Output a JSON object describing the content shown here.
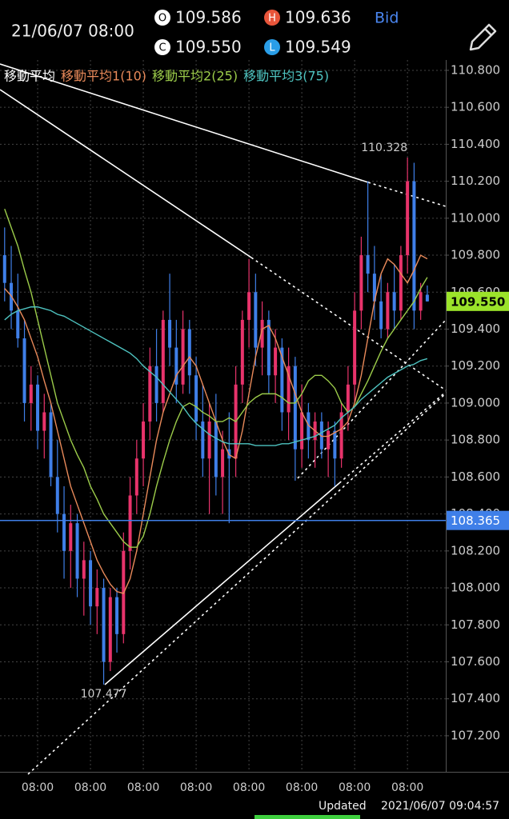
{
  "header": {
    "datetime": "21/06/07 08:00",
    "open": {
      "tag": "O",
      "value": "109.586"
    },
    "high": {
      "tag": "H",
      "value": "109.636"
    },
    "close": {
      "tag": "C",
      "value": "109.550"
    },
    "low": {
      "tag": "L",
      "value": "109.549"
    },
    "price_type": "Bid"
  },
  "footer": {
    "label": "Updated",
    "timestamp": "2021/06/07 09:04:57"
  },
  "chart_data": {
    "type": "candlestick",
    "legend_title": "移動平均",
    "up_color": "#e8336b",
    "down_color": "#3f7fe8",
    "xlim": [
      -0.7,
      66.8
    ],
    "xticks": [
      {
        "value": 5,
        "label": "08:00"
      },
      {
        "value": 13,
        "label": "08:00"
      },
      {
        "value": 21,
        "label": "08:00"
      },
      {
        "value": 29,
        "label": "08:00"
      },
      {
        "value": 37,
        "label": "08:00"
      },
      {
        "value": 45,
        "label": "08:00"
      },
      {
        "value": 53,
        "label": "08:00"
      },
      {
        "value": 61,
        "label": "08:00"
      }
    ],
    "ylim": [
      107.005,
      110.856
    ],
    "yticks": [
      {
        "value": 110.8,
        "label": "110.800"
      },
      {
        "value": 110.6,
        "label": "110.600"
      },
      {
        "value": 110.4,
        "label": "110.400"
      },
      {
        "value": 110.2,
        "label": "110.200"
      },
      {
        "value": 110,
        "label": "110.000"
      },
      {
        "value": 109.8,
        "label": "109.800"
      },
      {
        "value": 109.6,
        "label": "109.600"
      },
      {
        "value": 109.4,
        "label": "109.400"
      },
      {
        "value": 109.2,
        "label": "109.200"
      },
      {
        "value": 109,
        "label": "109.000"
      },
      {
        "value": 108.8,
        "label": "108.800"
      },
      {
        "value": 108.6,
        "label": "108.600"
      },
      {
        "value": 108.4,
        "label": "108.400"
      },
      {
        "value": 108.2,
        "label": "108.200"
      },
      {
        "value": 108,
        "label": "108.000"
      },
      {
        "value": 107.8,
        "label": "107.800"
      },
      {
        "value": 107.6,
        "label": "107.600"
      },
      {
        "value": 107.4,
        "label": "107.400"
      },
      {
        "value": 107.2,
        "label": "107.200"
      }
    ],
    "grid": true,
    "ohlc": [
      [
        109.8,
        109.95,
        109.55,
        109.65
      ],
      [
        109.65,
        109.85,
        109.4,
        109.5
      ],
      [
        109.5,
        109.7,
        109.3,
        109.35
      ],
      [
        109.35,
        109.45,
        108.9,
        109.0
      ],
      [
        109.0,
        109.2,
        108.85,
        109.1
      ],
      [
        109.1,
        109.15,
        108.75,
        108.85
      ],
      [
        108.85,
        109.05,
        108.7,
        108.95
      ],
      [
        108.95,
        109.0,
        108.55,
        108.6
      ],
      [
        108.6,
        108.8,
        108.3,
        108.4
      ],
      [
        108.4,
        108.55,
        108.05,
        108.2
      ],
      [
        108.2,
        108.45,
        108.0,
        108.35
      ],
      [
        108.35,
        108.4,
        107.95,
        108.05
      ],
      [
        108.05,
        108.25,
        107.85,
        108.15
      ],
      [
        108.15,
        108.2,
        107.8,
        107.9
      ],
      [
        107.9,
        108.1,
        107.75,
        108.0
      ],
      [
        108.0,
        108.05,
        107.477,
        107.6
      ],
      [
        107.6,
        108.0,
        107.55,
        107.95
      ],
      [
        107.95,
        108.0,
        107.65,
        107.75
      ],
      [
        107.75,
        108.3,
        107.7,
        108.2
      ],
      [
        108.2,
        108.6,
        108.1,
        108.5
      ],
      [
        108.5,
        108.8,
        108.4,
        108.7
      ],
      [
        108.7,
        109.0,
        108.55,
        108.9
      ],
      [
        108.9,
        109.3,
        108.8,
        109.2
      ],
      [
        109.2,
        109.4,
        108.9,
        109.0
      ],
      [
        109.0,
        109.5,
        108.95,
        109.45
      ],
      [
        109.45,
        109.7,
        109.2,
        109.3
      ],
      [
        109.3,
        109.45,
        109.0,
        109.1
      ],
      [
        109.1,
        109.5,
        109.05,
        109.4
      ],
      [
        109.4,
        109.45,
        109.05,
        109.15
      ],
      [
        109.15,
        109.25,
        108.8,
        108.9
      ],
      [
        108.9,
        109.1,
        108.6,
        108.7
      ],
      [
        108.7,
        109.0,
        108.4,
        108.9
      ],
      [
        108.9,
        109.05,
        108.5,
        108.6
      ],
      [
        108.6,
        108.85,
        108.4,
        108.75
      ],
      [
        108.75,
        108.95,
        108.35,
        108.7
      ],
      [
        108.7,
        109.2,
        108.6,
        109.1
      ],
      [
        109.1,
        109.5,
        109.0,
        109.45
      ],
      [
        109.45,
        109.78,
        109.3,
        109.6
      ],
      [
        109.6,
        109.7,
        109.2,
        109.3
      ],
      [
        109.3,
        109.55,
        109.15,
        109.45
      ],
      [
        109.45,
        109.5,
        109.05,
        109.15
      ],
      [
        109.15,
        109.4,
        109.0,
        109.3
      ],
      [
        109.3,
        109.35,
        108.85,
        108.95
      ],
      [
        108.95,
        109.3,
        108.8,
        109.2
      ],
      [
        109.2,
        109.25,
        108.58,
        108.75
      ],
      [
        108.75,
        109.1,
        108.65,
        108.95
      ],
      [
        108.95,
        109.0,
        108.7,
        108.8
      ],
      [
        108.8,
        108.95,
        108.65,
        108.9
      ],
      [
        108.9,
        108.95,
        108.7,
        108.75
      ],
      [
        108.75,
        108.9,
        108.6,
        108.85
      ],
      [
        108.85,
        108.9,
        108.55,
        108.7
      ],
      [
        108.7,
        109.0,
        108.65,
        108.95
      ],
      [
        108.95,
        109.2,
        108.85,
        109.1
      ],
      [
        109.1,
        109.6,
        109.0,
        109.5
      ],
      [
        109.5,
        109.9,
        109.4,
        109.8
      ],
      [
        109.8,
        110.2,
        109.6,
        109.7
      ],
      [
        109.7,
        109.85,
        109.45,
        109.55
      ],
      [
        109.55,
        109.7,
        109.35,
        109.4
      ],
      [
        109.4,
        109.65,
        109.35,
        109.6
      ],
      [
        109.6,
        109.75,
        109.4,
        109.5
      ],
      [
        109.5,
        109.85,
        109.45,
        109.8
      ],
      [
        109.8,
        110.328,
        109.7,
        110.2
      ],
      [
        110.2,
        110.3,
        109.4,
        109.5
      ],
      [
        109.5,
        109.65,
        109.45,
        109.6
      ],
      [
        109.586,
        109.636,
        109.549,
        109.55
      ]
    ],
    "high_annotation_index": 61,
    "low_annotation_index": 15,
    "series": [
      {
        "name": "移動平均1(10)",
        "color": "#e98a5a",
        "values": [
          109.62,
          109.58,
          109.52,
          109.45,
          109.35,
          109.25,
          109.12,
          109.0,
          108.85,
          108.7,
          108.55,
          108.45,
          108.35,
          108.25,
          108.15,
          108.08,
          108.02,
          107.98,
          107.97,
          108.05,
          108.2,
          108.4,
          108.6,
          108.8,
          108.95,
          109.05,
          109.15,
          109.2,
          109.25,
          109.2,
          109.1,
          109.0,
          108.9,
          108.8,
          108.72,
          108.7,
          108.85,
          109.05,
          109.25,
          109.4,
          109.42,
          109.35,
          109.25,
          109.15,
          109.05,
          108.95,
          108.88,
          108.85,
          108.82,
          108.82,
          108.84,
          108.86,
          108.9,
          109.0,
          109.15,
          109.35,
          109.55,
          109.7,
          109.78,
          109.75,
          109.7,
          109.65,
          109.72,
          109.8,
          109.78
        ]
      },
      {
        "name": "移動平均2(25)",
        "color": "#9ccc4a",
        "values": [
          110.05,
          109.95,
          109.85,
          109.72,
          109.6,
          109.45,
          109.3,
          109.15,
          109.0,
          108.9,
          108.8,
          108.72,
          108.65,
          108.55,
          108.48,
          108.4,
          108.35,
          108.3,
          108.25,
          108.22,
          108.22,
          108.28,
          108.4,
          108.55,
          108.68,
          108.8,
          108.9,
          108.98,
          109.0,
          108.98,
          108.95,
          108.93,
          108.9,
          108.9,
          108.92,
          108.9,
          108.95,
          109.0,
          109.03,
          109.05,
          109.05,
          109.05,
          109.03,
          109.0,
          109.0,
          109.05,
          109.12,
          109.15,
          109.15,
          109.12,
          109.08,
          109.0,
          108.95,
          108.98,
          109.05,
          109.12,
          109.2,
          109.28,
          109.35,
          109.4,
          109.45,
          109.5,
          109.55,
          109.62,
          109.68
        ]
      },
      {
        "name": "移動平均3(75)",
        "color": "#4ec3c0",
        "values": [
          109.45,
          109.48,
          109.5,
          109.51,
          109.52,
          109.52,
          109.51,
          109.5,
          109.48,
          109.47,
          109.45,
          109.43,
          109.41,
          109.39,
          109.37,
          109.35,
          109.33,
          109.31,
          109.29,
          109.27,
          109.24,
          109.2,
          109.17,
          109.14,
          109.1,
          109.06,
          109.02,
          108.98,
          108.93,
          108.89,
          108.86,
          108.83,
          108.81,
          108.79,
          108.78,
          108.78,
          108.78,
          108.78,
          108.77,
          108.77,
          108.77,
          108.77,
          108.78,
          108.78,
          108.79,
          108.8,
          108.81,
          108.82,
          108.84,
          108.86,
          108.88,
          108.92,
          108.95,
          108.98,
          109.02,
          109.05,
          109.08,
          109.11,
          109.14,
          109.16,
          109.18,
          109.2,
          109.21,
          109.23,
          109.24
        ]
      }
    ],
    "last_price": {
      "value": 109.55,
      "label": "109.550",
      "color": "#9be32a"
    },
    "hline": {
      "value": 108.365,
      "label": "108.365",
      "color": "#3f7fe8"
    }
  }
}
